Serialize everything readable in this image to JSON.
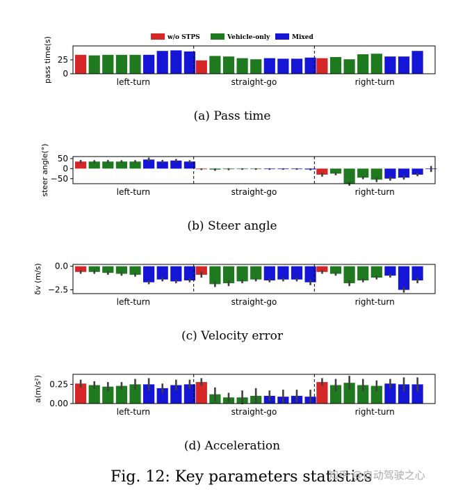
{
  "figure": {
    "caption": "Fig. 12: Key parameters statistics",
    "watermark": "知乎 @自动驾驶之心"
  },
  "legend": [
    {
      "label": "w/o STPS",
      "color": "#d62728"
    },
    {
      "label": "Vehicle-only",
      "color": "#1f7a1f"
    },
    {
      "label": "Mixed",
      "color": "#1515d6"
    }
  ],
  "chart_data": [
    {
      "type": "bar",
      "caption": "(a) Pass time",
      "ylabel": "pass time(s)",
      "ylim": [
        0,
        50
      ],
      "yticks": [
        {
          "v": 0,
          "label": "0"
        },
        {
          "v": 25,
          "label": "25"
        }
      ],
      "groups": [
        "left-turn",
        "straight-go",
        "right-turn"
      ],
      "bar_series": [
        "w/o STPS",
        "Vehicle-only",
        "Vehicle-only",
        "Vehicle-only",
        "Vehicle-only",
        "Mixed",
        "Mixed",
        "Mixed",
        "Mixed"
      ],
      "values": [
        [
          34,
          33,
          34,
          34,
          34,
          34,
          41,
          42,
          40
        ],
        [
          24,
          32,
          31,
          28,
          26,
          28,
          27,
          27,
          29
        ],
        [
          28,
          30,
          26,
          35,
          36,
          31,
          31,
          41,
          null
        ]
      ],
      "errors": []
    },
    {
      "type": "bar",
      "caption": "(b) Steer angle",
      "ylabel": "steer angle(°)",
      "ylim": [
        -75,
        60
      ],
      "yticks": [
        {
          "v": 50,
          "label": "50"
        },
        {
          "v": 0,
          "label": "0"
        },
        {
          "v": -50,
          "label": "−50"
        }
      ],
      "groups": [
        "left-turn",
        "straight-go",
        "right-turn"
      ],
      "bar_series": [
        "w/o STPS",
        "Vehicle-only",
        "Vehicle-only",
        "Vehicle-only",
        "Vehicle-only",
        "Mixed",
        "Mixed",
        "Mixed",
        "Mixed"
      ],
      "values": [
        [
          35,
          35,
          35,
          35,
          35,
          45,
          35,
          40,
          35
        ],
        [
          -3,
          -5,
          -3,
          -2,
          -2,
          -2,
          -2,
          -2,
          -4
        ],
        [
          -30,
          -25,
          -75,
          -45,
          -55,
          -50,
          -45,
          -30,
          -2
        ]
      ],
      "errors": [
        [
          8,
          7,
          8,
          7,
          7,
          10,
          8,
          8,
          7
        ],
        [
          4,
          6,
          5,
          4,
          4,
          4,
          4,
          4,
          5
        ],
        [
          10,
          8,
          10,
          8,
          12,
          10,
          10,
          8,
          15
        ]
      ]
    },
    {
      "type": "bar",
      "caption": "(c) Velocity error",
      "ylabel": "δv (m/s)",
      "ylim": [
        -2.9,
        0.2
      ],
      "yticks": [
        {
          "v": 0,
          "label": "0.0"
        },
        {
          "v": -2.5,
          "label": "−2.5"
        }
      ],
      "groups": [
        "left-turn",
        "straight-go",
        "right-turn"
      ],
      "bar_series": [
        "w/o STPS",
        "Vehicle-only",
        "Vehicle-only",
        "Vehicle-only",
        "Vehicle-only",
        "Mixed",
        "Mixed",
        "Mixed",
        "Mixed"
      ],
      "values": [
        [
          -0.6,
          -0.6,
          -0.7,
          -0.8,
          -0.9,
          -1.7,
          -1.4,
          -1.6,
          -1.5
        ],
        [
          -0.9,
          -1.9,
          -1.8,
          -1.6,
          -1.4,
          -1.5,
          -1.4,
          -1.4,
          -1.7
        ],
        [
          -0.6,
          -0.8,
          -1.8,
          -1.5,
          -1.2,
          -1.0,
          -2.5,
          -1.5,
          null
        ]
      ],
      "errors": [
        [
          0.2,
          0.2,
          0.2,
          0.2,
          0.2,
          0.2,
          0.2,
          0.2,
          0.2
        ],
        [
          0.3,
          0.3,
          0.3,
          0.2,
          0.2,
          0.2,
          0.2,
          0.2,
          0.3
        ],
        [
          0.2,
          0.2,
          0.3,
          0.2,
          0.2,
          0.2,
          0.3,
          0.3,
          null
        ]
      ]
    },
    {
      "type": "bar",
      "caption": "(d) Acceleration",
      "ylabel": "a(m/s²)",
      "ylim": [
        0,
        0.38
      ],
      "yticks": [
        {
          "v": 0,
          "label": "0.00"
        },
        {
          "v": 0.25,
          "label": "0.25"
        }
      ],
      "groups": [
        "left-turn",
        "straight-go",
        "right-turn"
      ],
      "bar_series": [
        "w/o STPS",
        "Vehicle-only",
        "Vehicle-only",
        "Vehicle-only",
        "Vehicle-only",
        "Mixed",
        "Mixed",
        "Mixed",
        "Mixed"
      ],
      "values": [
        [
          0.26,
          0.24,
          0.22,
          0.23,
          0.25,
          0.25,
          0.2,
          0.24,
          0.25
        ],
        [
          0.28,
          0.12,
          0.08,
          0.08,
          0.1,
          0.1,
          0.09,
          0.1,
          0.09
        ],
        [
          0.28,
          0.24,
          0.27,
          0.24,
          0.23,
          0.26,
          0.25,
          0.25,
          null
        ]
      ],
      "errors": [
        [
          0.05,
          0.05,
          0.06,
          0.05,
          0.07,
          0.08,
          0.06,
          0.07,
          0.06
        ],
        [
          0.05,
          0.09,
          0.06,
          0.09,
          0.1,
          0.07,
          0.09,
          0.08,
          0.09
        ],
        [
          0.05,
          0.08,
          0.09,
          0.08,
          0.07,
          0.06,
          0.09,
          0.09,
          null
        ]
      ]
    }
  ]
}
